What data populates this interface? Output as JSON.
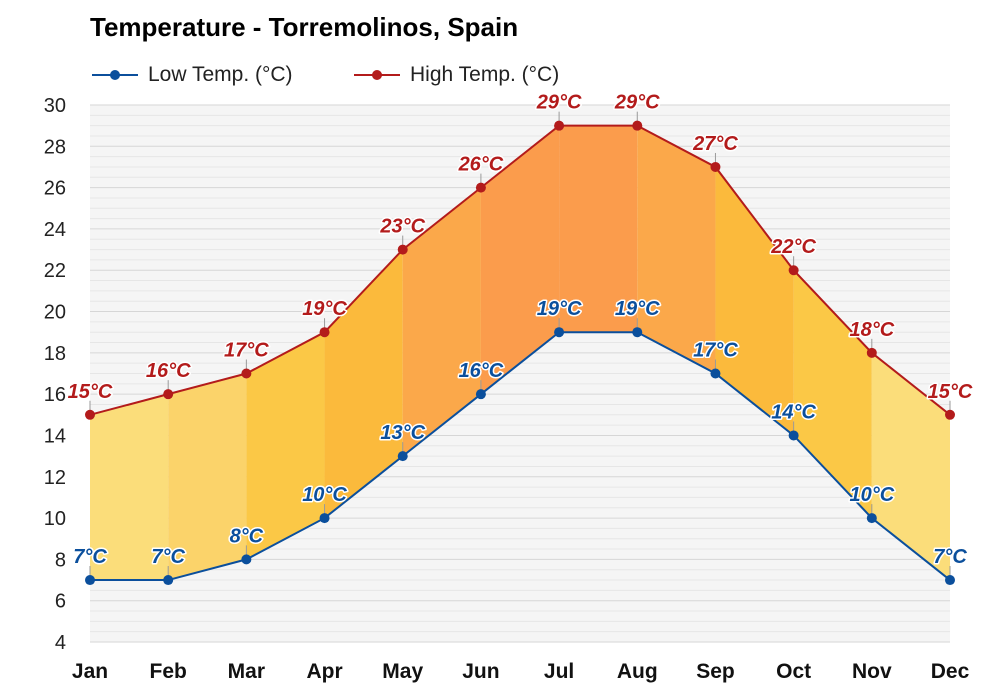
{
  "chart_data": {
    "type": "area",
    "title": "Temperature - Torremolinos, Spain",
    "categories": [
      "Jan",
      "Feb",
      "Mar",
      "Apr",
      "May",
      "Jun",
      "Jul",
      "Aug",
      "Sep",
      "Oct",
      "Nov",
      "Dec"
    ],
    "series": [
      {
        "name": "Low Temp. (°C)",
        "values": [
          7,
          7,
          8,
          10,
          13,
          16,
          19,
          19,
          17,
          14,
          10,
          7
        ],
        "labels": [
          "7°C",
          "7°C",
          "8°C",
          "10°C",
          "13°C",
          "16°C",
          "19°C",
          "19°C",
          "17°C",
          "14°C",
          "10°C",
          "7°C"
        ],
        "color": "#0b4f9c"
      },
      {
        "name": "High Temp. (°C)",
        "values": [
          15,
          16,
          17,
          19,
          23,
          26,
          29,
          29,
          27,
          22,
          18,
          15
        ],
        "labels": [
          "15°C",
          "16°C",
          "17°C",
          "19°C",
          "23°C",
          "26°C",
          "29°C",
          "29°C",
          "27°C",
          "22°C",
          "18°C",
          "15°C"
        ],
        "color": "#b31b1b"
      }
    ],
    "ylim": [
      4,
      30
    ],
    "yticks": [
      "4",
      "6",
      "8",
      "10",
      "12",
      "14",
      "16",
      "18",
      "20",
      "22",
      "24",
      "26",
      "28",
      "30"
    ],
    "grid": true,
    "legend_position": "top-left",
    "band_colors": [
      "#fbdd7a",
      "#fbd36a",
      "#fbc846",
      "#fbba3c",
      "#fba84a",
      "#fb9c4c",
      "#fb9c4c",
      "#fba84a",
      "#fbba3c",
      "#fbc846",
      "#fbdd7a"
    ]
  }
}
